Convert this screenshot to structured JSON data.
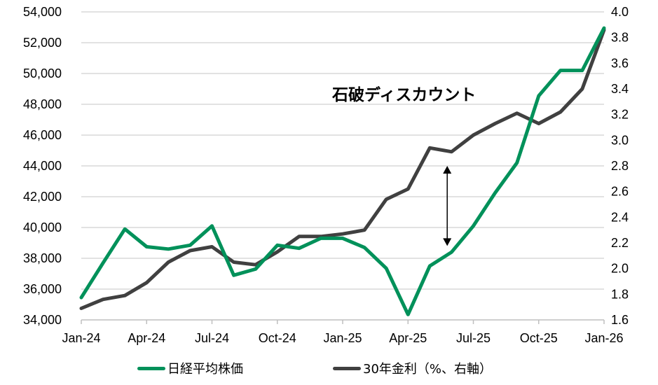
{
  "chart_data": {
    "type": "line",
    "title": "",
    "annotation": "石破ディスカウント",
    "x": [
      "Jan-24",
      "Feb-24",
      "Mar-24",
      "Apr-24",
      "May-24",
      "Jun-24",
      "Jul-24",
      "Aug-24",
      "Sep-24",
      "Oct-24",
      "Nov-24",
      "Dec-24",
      "Jan-25",
      "Feb-25",
      "Mar-25",
      "Apr-25",
      "May-25",
      "Jun-25",
      "Jul-25",
      "Aug-25",
      "Sep-25",
      "Oct-25",
      "Nov-25",
      "Dec-25",
      "Jan-26"
    ],
    "x_tick_labels": [
      "Jan-24",
      "Apr-24",
      "Jul-24",
      "Oct-24",
      "Jan-25",
      "Apr-25",
      "Jul-25",
      "Oct-25",
      "Jan-26"
    ],
    "series": [
      {
        "name": "日経平均株価",
        "axis": "left",
        "color": "#00915A",
        "values": [
          35450,
          37700,
          39900,
          38750,
          38600,
          38850,
          40100,
          36900,
          37300,
          38850,
          38650,
          39300,
          39300,
          38700,
          37350,
          34350,
          37500,
          38400,
          40100,
          42250,
          44200,
          48550,
          50200,
          50200,
          52950
        ]
      },
      {
        "name": "30年金利（%、右軸）",
        "axis": "right",
        "color": "#404040",
        "values": [
          1.69,
          1.76,
          1.79,
          1.89,
          2.05,
          2.14,
          2.17,
          2.05,
          2.03,
          2.13,
          2.25,
          2.25,
          2.27,
          2.3,
          2.54,
          2.62,
          2.94,
          2.91,
          3.04,
          3.13,
          3.21,
          3.13,
          3.22,
          3.4,
          3.86
        ]
      }
    ],
    "left_axis": {
      "ylim": [
        34000,
        54000
      ],
      "ticks": [
        "34,000",
        "36,000",
        "38,000",
        "40,000",
        "42,000",
        "44,000",
        "46,000",
        "48,000",
        "50,000",
        "52,000",
        "54,000"
      ]
    },
    "right_axis": {
      "ylim": [
        1.6,
        4.0
      ],
      "ticks": [
        "1.6",
        "1.8",
        "2.0",
        "2.2",
        "2.4",
        "2.6",
        "2.8",
        "3.0",
        "3.2",
        "3.4",
        "3.6",
        "3.8",
        "4.0"
      ]
    },
    "xlabel": "",
    "ylabel": "",
    "grid": true,
    "legend_position": "bottom",
    "arrow": {
      "x_index": 16.8,
      "from_left_value": 38800,
      "to_left_value": 44000
    }
  },
  "legend": {
    "items": [
      {
        "label": "日経平均株価",
        "color": "#00915A"
      },
      {
        "label": "30年金利（%、右軸）",
        "color": "#404040"
      }
    ]
  },
  "style": {
    "grid_color": "#D9D9D9",
    "axis_color": "#BFBFBF"
  }
}
